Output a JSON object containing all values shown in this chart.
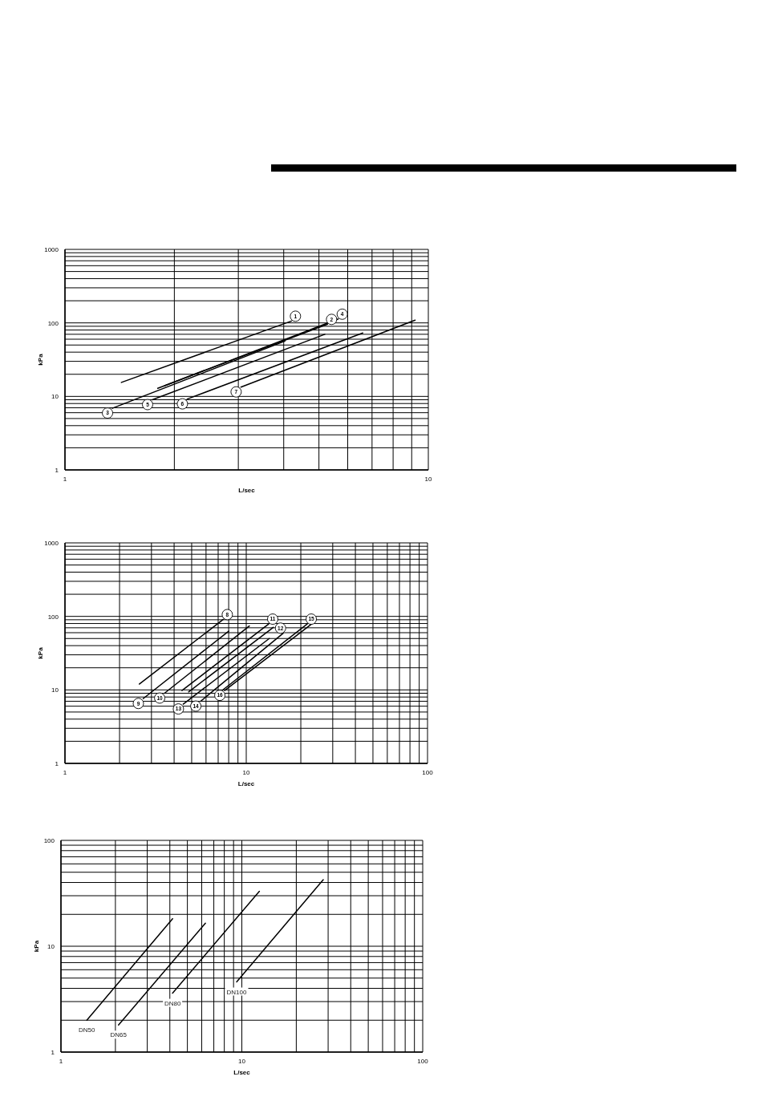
{
  "chart_data": [
    {
      "type": "line",
      "xlabel": "L/sec",
      "ylabel": "kPa",
      "log": "xy",
      "xlim": [
        1,
        10
      ],
      "ylim": [
        1,
        1000
      ],
      "xticks": [
        1,
        {
          "value": 2,
          "label": null
        },
        {
          "value": 3,
          "label": null
        },
        {
          "value": 4,
          "label": null
        },
        {
          "value": 5,
          "label": null
        },
        {
          "value": 6,
          "label": null
        },
        {
          "value": 7,
          "label": null
        },
        {
          "value": 8,
          "label": null
        },
        {
          "value": 9,
          "label": null
        },
        10
      ],
      "yticks": [
        1,
        {
          "value": 2,
          "label": null
        },
        {
          "value": 3,
          "label": null
        },
        {
          "value": 4,
          "label": null
        },
        {
          "value": 5,
          "label": null
        },
        {
          "value": 6,
          "label": null
        },
        {
          "value": 7,
          "label": null
        },
        {
          "value": 8,
          "label": null
        },
        {
          "value": 9,
          "label": null
        },
        10,
        {
          "value": 20,
          "label": null
        },
        {
          "value": 30,
          "label": null
        },
        {
          "value": 40,
          "label": null
        },
        {
          "value": 50,
          "label": null
        },
        {
          "value": 60,
          "label": null
        },
        {
          "value": 70,
          "label": null
        },
        {
          "value": 80,
          "label": null
        },
        {
          "value": 90,
          "label": null
        },
        100,
        {
          "value": 200,
          "label": null
        },
        {
          "value": 300,
          "label": null
        },
        {
          "value": 400,
          "label": null
        },
        {
          "value": 500,
          "label": null
        },
        {
          "value": 600,
          "label": null
        },
        {
          "value": 700,
          "label": null
        },
        {
          "value": 800,
          "label": null
        },
        {
          "value": 900,
          "label": null
        },
        1000
      ],
      "grid": true,
      "marker": "none",
      "series": [
        {
          "name": "1",
          "color": "#000000",
          "x": [
            4.2,
            1.43
          ],
          "values": [
            106,
            15.5
          ]
        },
        {
          "name": "2",
          "color": "#000000",
          "x": [
            5.28,
            1.8
          ],
          "values": [
            96,
            12.9
          ]
        },
        {
          "name": "3",
          "color": "#000000",
          "x": [
            1.35,
            4.03
          ],
          "values": [
            6.9,
            56.6
          ]
        },
        {
          "name": "4",
          "color": "#000000",
          "x": [
            5.65,
            1.88
          ],
          "values": [
            113,
            14
          ]
        },
        {
          "name": "5",
          "color": "#000000",
          "x": [
            1.74,
            5.19
          ],
          "values": [
            9,
            70
          ]
        },
        {
          "name": "6",
          "color": "#000000",
          "x": [
            2.17,
            6.6
          ],
          "values": [
            9.2,
            73
          ]
        },
        {
          "name": "7",
          "color": "#000000",
          "x": [
            3.05,
            9.2
          ],
          "values": [
            13.4,
            109
          ]
        }
      ]
    },
    {
      "type": "line",
      "xlabel": "L/sec",
      "ylabel": "kPa",
      "log": "xy",
      "xlim": [
        1,
        100
      ],
      "ylim": [
        1,
        1000
      ],
      "xticks": [
        1,
        {
          "value": 2,
          "label": null
        },
        {
          "value": 3,
          "label": null
        },
        {
          "value": 4,
          "label": null
        },
        {
          "value": 5,
          "label": null
        },
        {
          "value": 6,
          "label": null
        },
        {
          "value": 7,
          "label": null
        },
        {
          "value": 8,
          "label": null
        },
        {
          "value": 9,
          "label": null
        },
        10,
        {
          "value": 20,
          "label": null
        },
        {
          "value": 30,
          "label": null
        },
        {
          "value": 40,
          "label": null
        },
        {
          "value": 50,
          "label": null
        },
        {
          "value": 60,
          "label": null
        },
        {
          "value": 70,
          "label": null
        },
        {
          "value": 80,
          "label": null
        },
        {
          "value": 90,
          "label": null
        },
        100
      ],
      "yticks": [
        1,
        {
          "value": 2,
          "label": null
        },
        {
          "value": 3,
          "label": null
        },
        {
          "value": 4,
          "label": null
        },
        {
          "value": 5,
          "label": null
        },
        {
          "value": 6,
          "label": null
        },
        {
          "value": 7,
          "label": null
        },
        {
          "value": 8,
          "label": null
        },
        {
          "value": 9,
          "label": null
        },
        10,
        {
          "value": 20,
          "label": null
        },
        {
          "value": 30,
          "label": null
        },
        {
          "value": 40,
          "label": null
        },
        {
          "value": 50,
          "label": null
        },
        {
          "value": 60,
          "label": null
        },
        {
          "value": 70,
          "label": null
        },
        {
          "value": 80,
          "label": null
        },
        {
          "value": 90,
          "label": null
        },
        100,
        {
          "value": 200,
          "label": null
        },
        {
          "value": 300,
          "label": null
        },
        {
          "value": 400,
          "label": null
        },
        {
          "value": 500,
          "label": null
        },
        {
          "value": 600,
          "label": null
        },
        {
          "value": 700,
          "label": null
        },
        {
          "value": 800,
          "label": null
        },
        {
          "value": 900,
          "label": null
        },
        1000
      ],
      "grid": true,
      "marker": "none",
      "series": [
        {
          "name": "8",
          "color": "#000000",
          "x": [
            7.47,
            2.57
          ],
          "values": [
            91,
            12
          ]
        },
        {
          "name": "9",
          "color": "#000000",
          "x": [
            2.7,
            8
          ],
          "values": [
            7.6,
            63
          ]
        },
        {
          "name": "10",
          "color": "#000000",
          "x": [
            3.54,
            10.4
          ],
          "values": [
            9,
            74
          ]
        },
        {
          "name": "11",
          "color": "#000000",
          "x": [
            13.3,
            4.42
          ],
          "values": [
            79,
            9.8
          ]
        },
        {
          "name": "12",
          "color": "#000000",
          "x": [
            14.1,
            4.81
          ],
          "values": [
            71,
            9.4
          ]
        },
        {
          "name": "13",
          "color": "#000000",
          "x": [
            4.49,
            13.4
          ],
          "values": [
            6.4,
            50
          ]
        },
        {
          "name": "14",
          "color": "#000000",
          "x": [
            5.6,
            16
          ],
          "values": [
            7,
            59
          ]
        },
        {
          "name": "15",
          "color": "#000000",
          "x": [
            21.7,
            7.39
          ],
          "values": [
            79,
            9.9
          ]
        },
        {
          "name": "16",
          "color": "#000000",
          "x": [
            7.6,
            23.1
          ],
          "values": [
            9.8,
            80
          ]
        }
      ]
    },
    {
      "type": "line",
      "xlabel": "L/sec",
      "ylabel": "kPa",
      "log": "xy",
      "xlim": [
        1,
        100
      ],
      "ylim": [
        1,
        100
      ],
      "xticks": [
        1,
        {
          "value": 2,
          "label": null
        },
        {
          "value": 3,
          "label": null
        },
        {
          "value": 4,
          "label": null
        },
        {
          "value": 5,
          "label": null
        },
        {
          "value": 6,
          "label": null
        },
        {
          "value": 7,
          "label": null
        },
        {
          "value": 8,
          "label": null
        },
        {
          "value": 9,
          "label": null
        },
        10,
        {
          "value": 20,
          "label": null
        },
        {
          "value": 30,
          "label": null
        },
        {
          "value": 40,
          "label": null
        },
        {
          "value": 50,
          "label": null
        },
        {
          "value": 60,
          "label": null
        },
        {
          "value": 70,
          "label": null
        },
        {
          "value": 80,
          "label": null
        },
        {
          "value": 90,
          "label": null
        },
        100
      ],
      "yticks": [
        1,
        {
          "value": 2,
          "label": null
        },
        {
          "value": 3,
          "label": null
        },
        {
          "value": 4,
          "label": null
        },
        {
          "value": 5,
          "label": null
        },
        {
          "value": 6,
          "label": null
        },
        {
          "value": 7,
          "label": null
        },
        {
          "value": 8,
          "label": null
        },
        {
          "value": 9,
          "label": null
        },
        10,
        {
          "value": 20,
          "label": null
        },
        {
          "value": 30,
          "label": null
        },
        {
          "value": 40,
          "label": null
        },
        {
          "value": 50,
          "label": null
        },
        {
          "value": 60,
          "label": null
        },
        {
          "value": 70,
          "label": null
        },
        {
          "value": 80,
          "label": null
        },
        {
          "value": 90,
          "label": null
        },
        100
      ],
      "grid": true,
      "marker": "none",
      "series": [
        {
          "name": "DN50",
          "color": "#000000",
          "x": [
            1.39,
            4.14
          ],
          "values": [
            2,
            18.2
          ]
        },
        {
          "name": "DN65",
          "color": "#000000",
          "x": [
            2.08,
            6.29
          ],
          "values": [
            1.8,
            16.5
          ]
        },
        {
          "name": "DN80",
          "color": "#000000",
          "x": [
            4.14,
            12.5
          ],
          "values": [
            3.6,
            33
          ]
        },
        {
          "name": "DN100",
          "color": "#000000",
          "x": [
            9.36,
            28.2
          ],
          "values": [
            4.6,
            42.5
          ]
        }
      ]
    }
  ]
}
